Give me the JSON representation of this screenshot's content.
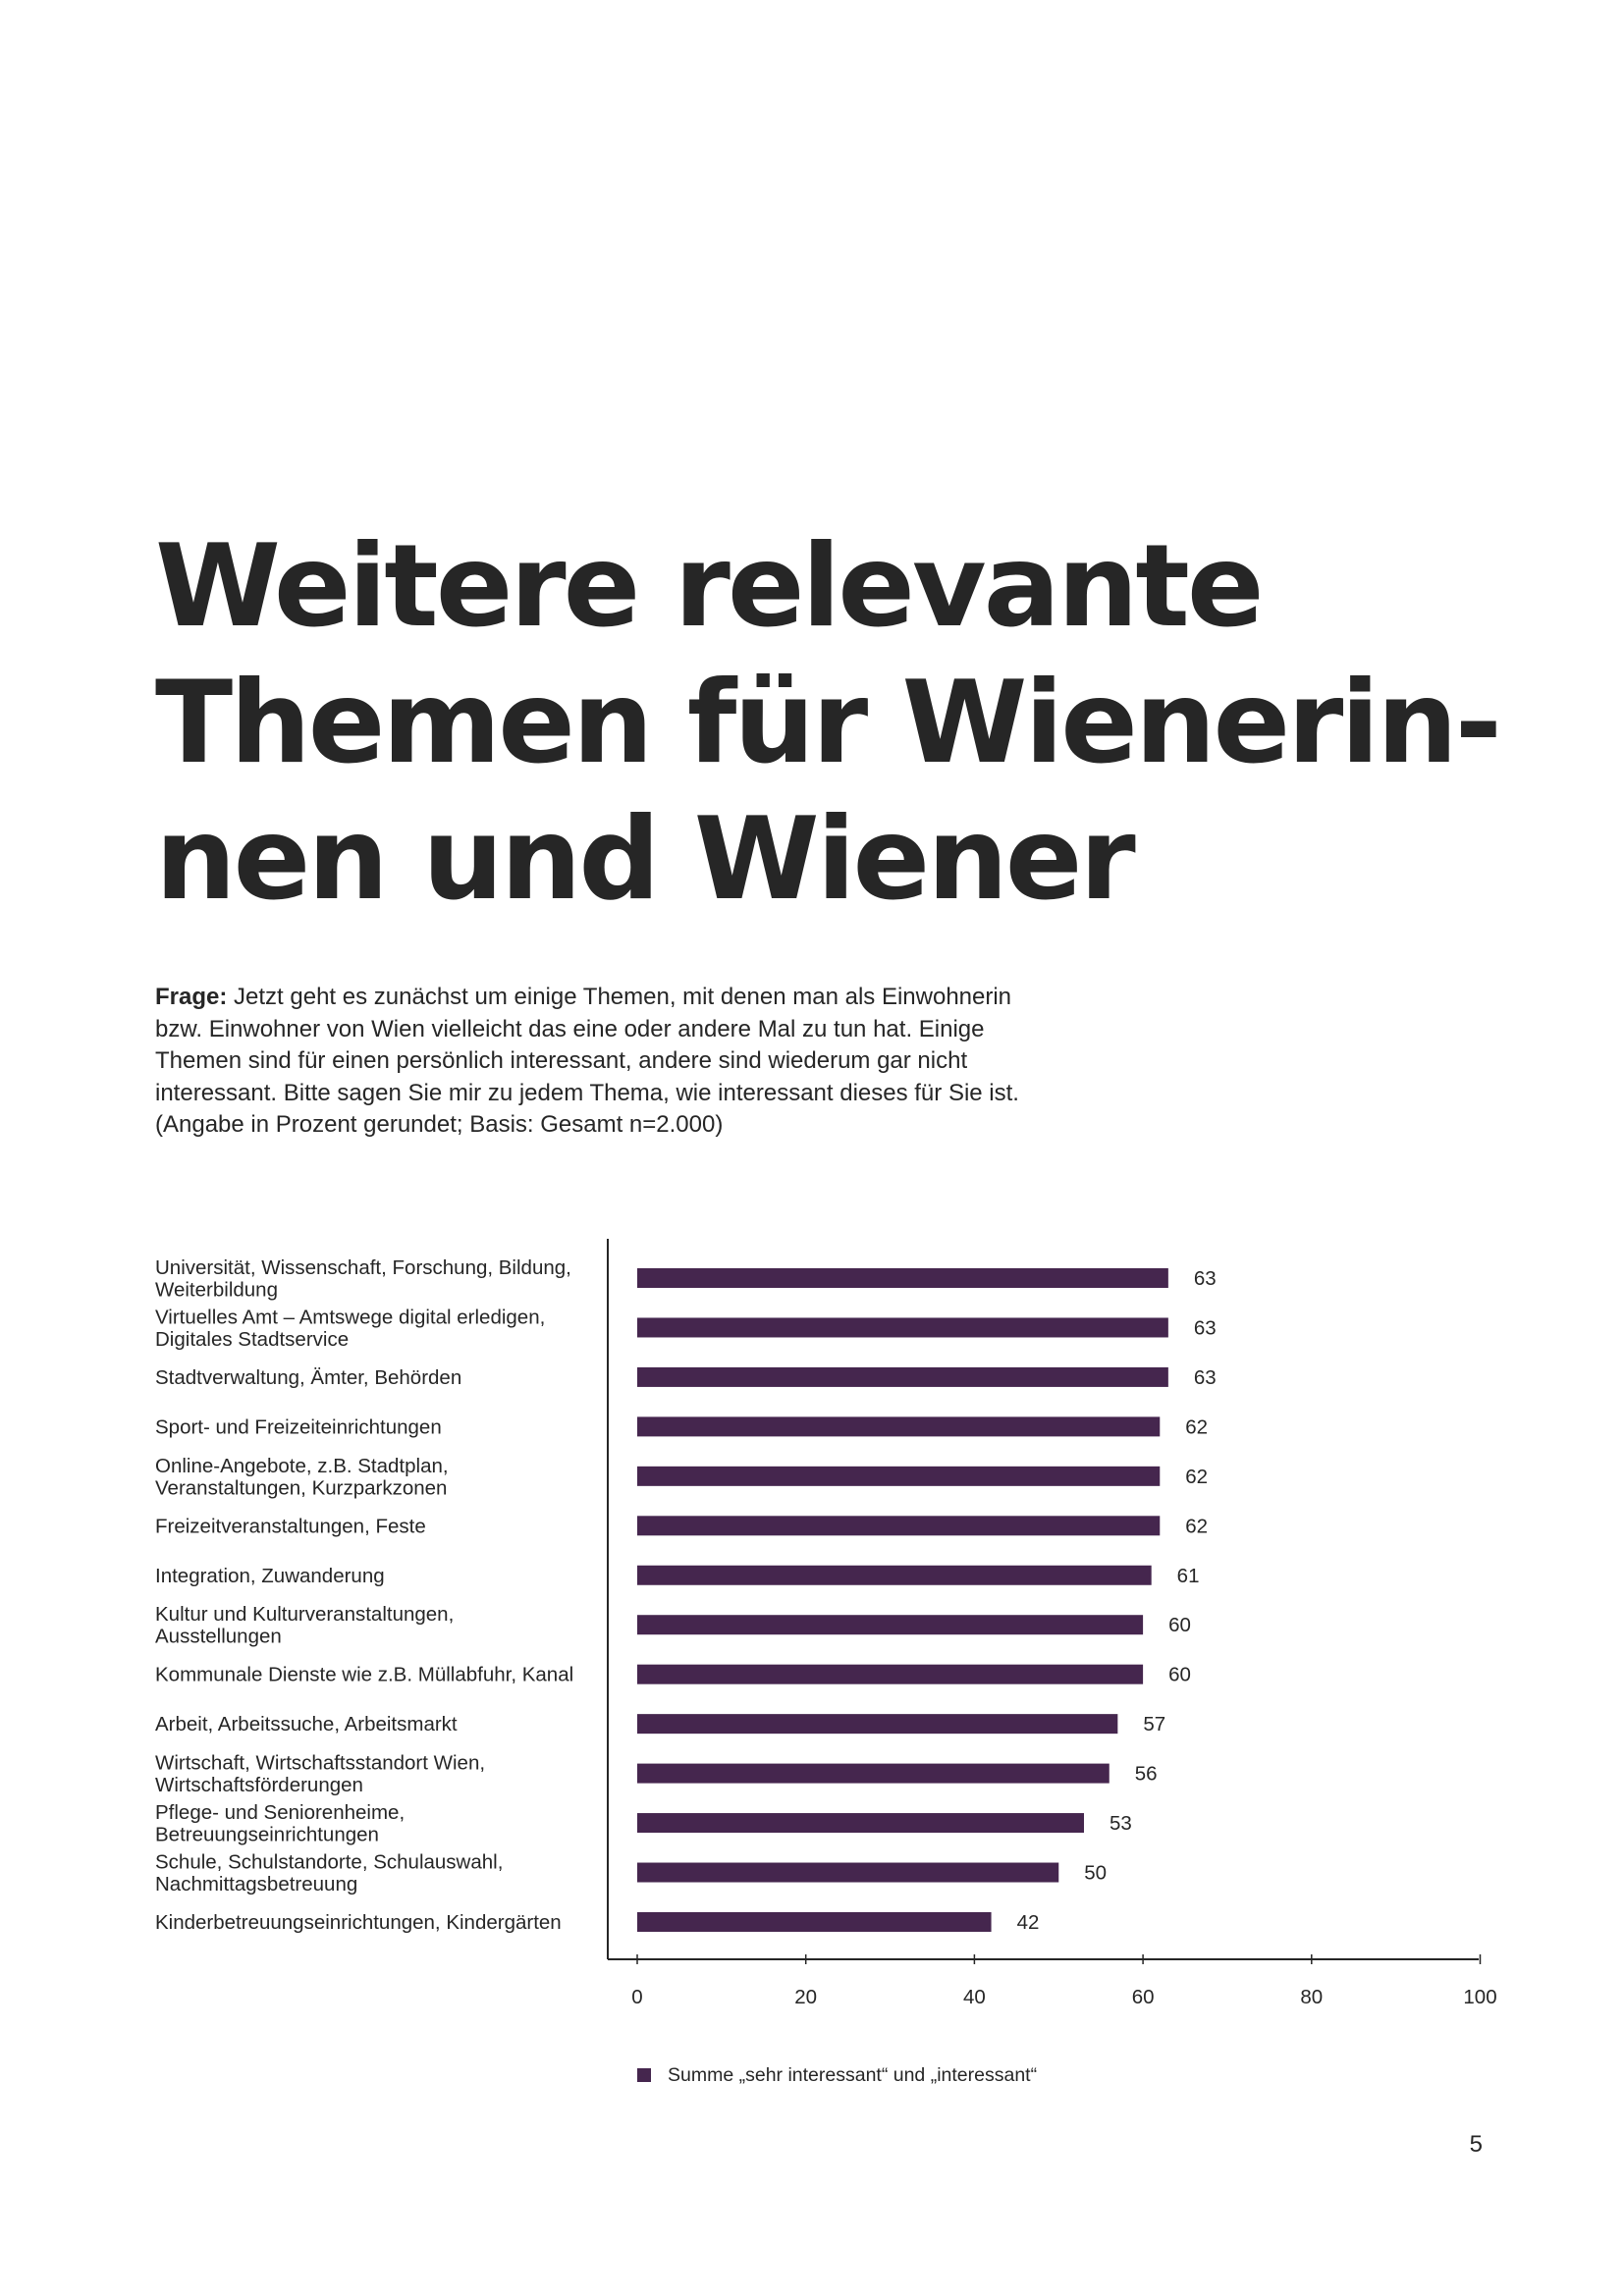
{
  "title_lines": [
    "Weitere relevante",
    "Themen für Wienerin-",
    "nen und Wiener"
  ],
  "question": {
    "label": "Frage:",
    "lines": [
      " Jetzt geht es zunächst um einige Themen, mit denen man als Einwohnerin",
      "bzw. Einwohner von Wien vielleicht das eine oder andere Mal zu tun hat. Einige",
      "Themen sind für einen persönlich interessant, andere sind wiederum gar nicht",
      "interessant. Bitte sagen Sie mir zu jedem Thema, wie interessant dieses für Sie ist.",
      "(Angabe in Prozent gerundet; Basis: Gesamt n=2.000)"
    ]
  },
  "chart_data": {
    "type": "bar",
    "orientation": "horizontal",
    "categories": [
      [
        "Universität, Wissenschaft, Forschung, Bildung,",
        "Weiterbildung"
      ],
      [
        "Virtuelles Amt – Amtswege digital erledigen,",
        "Digitales Stadtservice"
      ],
      [
        "Stadtverwaltung, Ämter, Behörden"
      ],
      [
        "Sport- und Freizeiteinrichtungen"
      ],
      [
        "Online-Angebote, z.B. Stadtplan,",
        "Veranstaltungen, Kurzparkzonen"
      ],
      [
        "Freizeitveranstaltungen, Feste"
      ],
      [
        "Integration, Zuwanderung"
      ],
      [
        "Kultur und Kulturveranstaltungen,",
        "Ausstellungen"
      ],
      [
        "Kommunale Dienste wie z.B. Müllabfuhr, Kanal"
      ],
      [
        "Arbeit, Arbeitssuche, Arbeitsmarkt"
      ],
      [
        "Wirtschaft, Wirtschaftsstandort Wien,",
        "Wirtschaftsförderungen"
      ],
      [
        "Pflege- und Seniorenheime,",
        "Betreuungseinrichtungen"
      ],
      [
        "Schule, Schulstandorte, Schulauswahl,",
        "Nachmittagsbetreuung"
      ],
      [
        "Kinderbetreuungseinrichtungen, Kindergärten"
      ]
    ],
    "series": [
      {
        "name": "Summe „sehr interessant“ und „interessant“",
        "values": [
          63,
          63,
          63,
          62,
          62,
          62,
          61,
          60,
          60,
          57,
          56,
          53,
          50,
          42
        ]
      }
    ],
    "xlim": [
      0,
      100
    ],
    "xticks": [
      "0",
      "20",
      "40",
      "60",
      "80",
      "100"
    ],
    "legend_position": "bottom",
    "bar_color": "#45264e",
    "grid": false
  },
  "page_number": "5"
}
